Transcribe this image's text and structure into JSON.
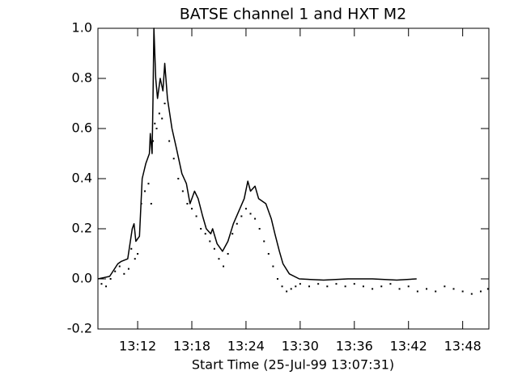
{
  "chart_data": {
    "type": "line",
    "title": "BATSE channel 1 and HXT M2",
    "x_label": "Start Time (25-Jul-99 13:07:31)",
    "xlim": [
      7.6,
      50.9
    ],
    "xticks": [
      {
        "value": 12,
        "label": "13:12"
      },
      {
        "value": 18,
        "label": "13:18"
      },
      {
        "value": 24,
        "label": "13:24"
      },
      {
        "value": 30,
        "label": "13:30"
      },
      {
        "value": 36,
        "label": "13:36"
      },
      {
        "value": 42,
        "label": "13:42"
      },
      {
        "value": 48,
        "label": "13:48"
      }
    ],
    "ylim": [
      -0.2,
      1.0
    ],
    "yticks": [
      -0.2,
      {
        "value": 0,
        "label": "0.0"
      },
      0.2,
      0.4,
      0.6,
      0.8,
      {
        "value": 1,
        "label": "1.0"
      }
    ],
    "grid": false,
    "series": [
      {
        "mode": "line",
        "color": "#000000",
        "x": [
          7.6,
          8.9,
          9.8,
          10.2,
          10.9,
          11.4,
          11.6,
          11.8,
          12.2,
          12.5,
          12.9,
          13.3,
          13.4,
          13.6,
          13.7,
          13.8,
          14.0,
          14.2,
          14.5,
          14.8,
          15.0,
          15.3,
          15.8,
          16.3,
          16.9,
          17.4,
          17.8,
          18.3,
          18.7,
          19.2,
          19.6,
          20.1,
          20.3,
          20.8,
          21.4,
          22.0,
          22.6,
          23.2,
          23.8,
          24.2,
          24.5,
          25.0,
          25.4,
          26.2,
          26.8,
          27.2,
          27.7,
          28.1,
          28.8,
          29.9,
          32.6,
          35.3,
          38.0,
          40.7,
          42.9
        ],
        "values": [
          0,
          0.01,
          0.06,
          0.07,
          0.08,
          0.2,
          0.22,
          0.15,
          0.17,
          0.4,
          0.46,
          0.5,
          0.58,
          0.5,
          0.72,
          1.0,
          0.8,
          0.72,
          0.8,
          0.75,
          0.86,
          0.72,
          0.6,
          0.52,
          0.42,
          0.38,
          0.3,
          0.35,
          0.32,
          0.25,
          0.2,
          0.18,
          0.2,
          0.14,
          0.11,
          0.15,
          0.22,
          0.27,
          0.32,
          0.39,
          0.35,
          0.37,
          0.32,
          0.3,
          0.24,
          0.18,
          0.11,
          0.06,
          0.02,
          0,
          -0.005,
          0,
          0,
          -0.005,
          0
        ]
      },
      {
        "mode": "dots",
        "color": "#000000",
        "x": [
          8.0,
          8.5,
          9.0,
          9.5,
          10.0,
          10.5,
          11.0,
          11.3,
          11.7,
          12.0,
          12.4,
          12.8,
          13.2,
          13.5,
          13.7,
          13.9,
          14.1,
          14.4,
          14.7,
          15.0,
          15.5,
          16.0,
          16.5,
          17.0,
          17.5,
          18.0,
          18.5,
          19.0,
          19.5,
          20.0,
          20.5,
          21.0,
          21.5,
          22.0,
          22.5,
          23.0,
          23.5,
          24.0,
          24.5,
          25.0,
          25.5,
          26.0,
          26.5,
          27.0,
          27.5,
          28.0,
          28.5,
          29.0,
          29.5,
          30.0,
          31.0,
          32.0,
          33.0,
          34.0,
          35.0,
          36.0,
          37.0,
          38.0,
          39.0,
          40.0,
          41.0,
          42.0,
          43.0,
          44.0,
          45.0,
          46.0,
          47.0,
          48.0,
          49.0,
          50.0,
          50.8
        ],
        "values": [
          -0.02,
          -0.03,
          0.0,
          0.03,
          0.05,
          0.02,
          0.04,
          0.12,
          0.08,
          0.1,
          0.3,
          0.35,
          0.38,
          0.3,
          0.55,
          0.62,
          0.6,
          0.66,
          0.64,
          0.7,
          0.55,
          0.48,
          0.4,
          0.35,
          0.3,
          0.28,
          0.25,
          0.2,
          0.18,
          0.15,
          0.12,
          0.08,
          0.05,
          0.1,
          0.18,
          0.22,
          0.25,
          0.28,
          0.26,
          0.24,
          0.2,
          0.15,
          0.1,
          0.05,
          0.0,
          -0.03,
          -0.05,
          -0.04,
          -0.03,
          -0.02,
          -0.03,
          -0.02,
          -0.03,
          -0.02,
          -0.03,
          -0.02,
          -0.03,
          -0.04,
          -0.03,
          -0.02,
          -0.04,
          -0.03,
          -0.05,
          -0.04,
          -0.05,
          -0.03,
          -0.04,
          -0.05,
          -0.06,
          -0.05,
          -0.04
        ]
      }
    ]
  }
}
